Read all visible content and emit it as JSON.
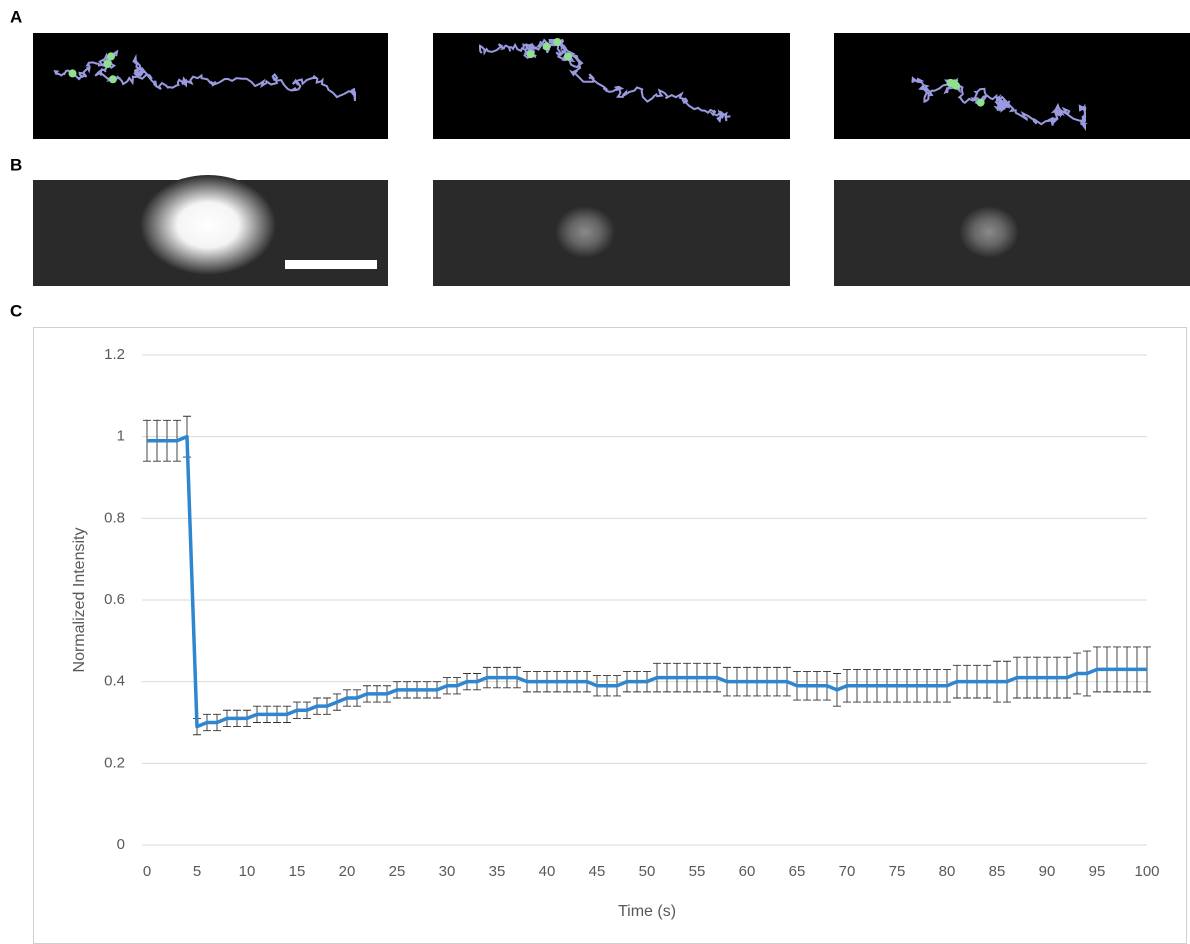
{
  "panel_labels": [
    "A",
    "B",
    "C"
  ],
  "chart_data": {
    "type": "line",
    "xlabel": "Time (s)",
    "ylabel": "Normalized Intensity",
    "x": [
      0,
      1,
      2,
      3,
      4,
      5,
      6,
      7,
      8,
      9,
      10,
      11,
      12,
      13,
      14,
      15,
      16,
      17,
      18,
      19,
      20,
      21,
      22,
      23,
      24,
      25,
      26,
      27,
      28,
      29,
      30,
      31,
      32,
      33,
      34,
      35,
      36,
      37,
      38,
      39,
      40,
      41,
      42,
      43,
      44,
      45,
      46,
      47,
      48,
      49,
      50,
      51,
      52,
      53,
      54,
      55,
      56,
      57,
      58,
      59,
      60,
      61,
      62,
      63,
      64,
      65,
      66,
      67,
      68,
      69,
      70,
      71,
      72,
      73,
      74,
      75,
      76,
      77,
      78,
      79,
      80,
      81,
      82,
      83,
      84,
      85,
      86,
      87,
      88,
      89,
      90,
      91,
      92,
      93,
      94,
      95,
      96,
      97,
      98,
      99,
      100
    ],
    "series": [
      {
        "color": "#2e86d0",
        "values": [
          0.99,
          0.99,
          0.99,
          0.99,
          1.0,
          0.29,
          0.3,
          0.3,
          0.31,
          0.31,
          0.31,
          0.32,
          0.32,
          0.32,
          0.32,
          0.33,
          0.33,
          0.34,
          0.34,
          0.35,
          0.36,
          0.36,
          0.37,
          0.37,
          0.37,
          0.38,
          0.38,
          0.38,
          0.38,
          0.38,
          0.39,
          0.39,
          0.4,
          0.4,
          0.41,
          0.41,
          0.41,
          0.41,
          0.4,
          0.4,
          0.4,
          0.4,
          0.4,
          0.4,
          0.4,
          0.39,
          0.39,
          0.39,
          0.4,
          0.4,
          0.4,
          0.41,
          0.41,
          0.41,
          0.41,
          0.41,
          0.41,
          0.41,
          0.4,
          0.4,
          0.4,
          0.4,
          0.4,
          0.4,
          0.4,
          0.39,
          0.39,
          0.39,
          0.39,
          0.38,
          0.39,
          0.39,
          0.39,
          0.39,
          0.39,
          0.39,
          0.39,
          0.39,
          0.39,
          0.39,
          0.39,
          0.4,
          0.4,
          0.4,
          0.4,
          0.4,
          0.4,
          0.41,
          0.41,
          0.41,
          0.41,
          0.41,
          0.41,
          0.42,
          0.42,
          0.43,
          0.43,
          0.43,
          0.43,
          0.43,
          0.43
        ],
        "errors": [
          0.05,
          0.05,
          0.05,
          0.05,
          0.05,
          0.02,
          0.02,
          0.02,
          0.02,
          0.02,
          0.02,
          0.02,
          0.02,
          0.02,
          0.02,
          0.02,
          0.02,
          0.02,
          0.02,
          0.02,
          0.02,
          0.02,
          0.02,
          0.02,
          0.02,
          0.02,
          0.02,
          0.02,
          0.02,
          0.02,
          0.02,
          0.02,
          0.02,
          0.02,
          0.025,
          0.025,
          0.025,
          0.025,
          0.025,
          0.025,
          0.025,
          0.025,
          0.025,
          0.025,
          0.025,
          0.025,
          0.025,
          0.025,
          0.025,
          0.025,
          0.025,
          0.035,
          0.035,
          0.035,
          0.035,
          0.035,
          0.035,
          0.035,
          0.035,
          0.035,
          0.035,
          0.035,
          0.035,
          0.035,
          0.035,
          0.035,
          0.035,
          0.035,
          0.035,
          0.04,
          0.04,
          0.04,
          0.04,
          0.04,
          0.04,
          0.04,
          0.04,
          0.04,
          0.04,
          0.04,
          0.04,
          0.04,
          0.04,
          0.04,
          0.04,
          0.05,
          0.05,
          0.05,
          0.05,
          0.05,
          0.05,
          0.05,
          0.05,
          0.05,
          0.055,
          0.055,
          0.055,
          0.055,
          0.055,
          0.055,
          0.055
        ]
      }
    ],
    "xlim": [
      0,
      100
    ],
    "xticks": [
      0,
      5,
      10,
      15,
      20,
      25,
      30,
      35,
      40,
      45,
      50,
      55,
      60,
      65,
      70,
      75,
      80,
      85,
      90,
      95,
      100
    ],
    "ylim": [
      0,
      1.2
    ],
    "yticks": [
      0,
      0.2,
      0.4,
      0.6,
      0.8,
      1,
      1.2
    ],
    "grid": true
  }
}
